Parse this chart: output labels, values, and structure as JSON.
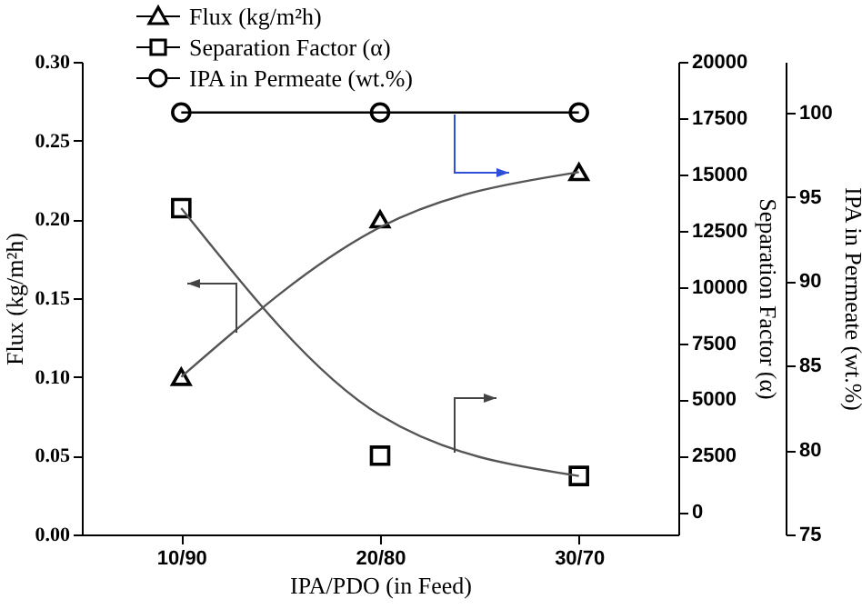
{
  "chart_data": {
    "type": "scatter",
    "xlabel": "IPA/PDO (in Feed)",
    "ylabel": "Flux (kg/m²h)",
    "y2label": "Separation Factor (α)",
    "y3label": "IPA in Permeate (wt.%)",
    "categories": [
      "10/90",
      "20/80",
      "30/70"
    ],
    "series": [
      {
        "name": "Flux (kg/m²h)",
        "type": "scatter",
        "marker": "triangle",
        "color": "#000000",
        "values": [
          0.1,
          0.2,
          0.23
        ]
      },
      {
        "name": "Separation Factor (α)",
        "type": "scatter",
        "marker": "square",
        "color": "#000000",
        "axis": "y2",
        "values": [
          13500,
          2500,
          1600
        ]
      },
      {
        "name": "IPA in Permeate (wt.%)",
        "type": "line",
        "marker": "circle",
        "color": "#000000",
        "axis": "y3",
        "values": [
          100,
          100,
          100
        ]
      },
      {
        "type": "line",
        "marker": "none",
        "color": "#555555",
        "values": [
          0.1,
          0.195,
          0.23
        ]
      },
      {
        "type": "line",
        "marker": "none",
        "color": "#555555",
        "axis": "y2",
        "values": [
          13500,
          4300,
          1600
        ]
      }
    ],
    "ylim": [
      0,
      0.3
    ],
    "yticks": [
      {
        "value": 0,
        "label": "0.00"
      },
      {
        "value": 0.05,
        "label": "0.05"
      },
      {
        "value": 0.1,
        "label": "0.10"
      },
      {
        "value": 0.15,
        "label": "0.15"
      },
      {
        "value": 0.2,
        "label": "0.20"
      },
      {
        "value": 0.25,
        "label": "0.25"
      },
      {
        "value": 0.3,
        "label": "0.30"
      }
    ],
    "y2lim": [
      -1000,
      20000
    ],
    "y2ticks": [
      0,
      2500,
      5000,
      7500,
      10000,
      12500,
      15000,
      17500,
      20000
    ],
    "y3lim": [
      75,
      103
    ],
    "y3ticks": [
      75,
      80,
      85,
      90,
      95,
      100
    ],
    "legend": "top left"
  }
}
